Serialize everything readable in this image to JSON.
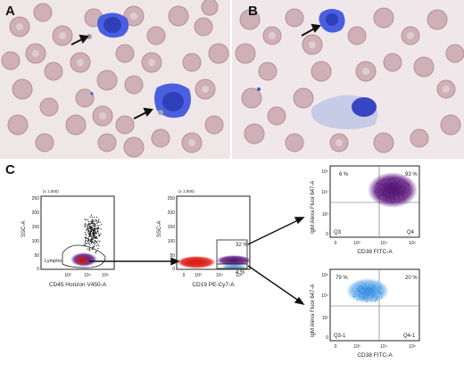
{
  "figure": {
    "panel_labels": {
      "a": "A",
      "b": "B",
      "c": "C"
    }
  },
  "plot1": {
    "ylabel": "SSC-A",
    "yscale": "(x 1,000)",
    "yticks": [
      "250",
      "200",
      "150",
      "100",
      "50",
      "0"
    ],
    "xticks": [
      "10³",
      "10⁴",
      "10⁵"
    ],
    "xlabel": "CD45 Horizon V450-A",
    "gate": "Lympho"
  },
  "plot2": {
    "ylabel": "SSC-A",
    "yscale": "(x 1,000)",
    "yticks": [
      "250",
      "200",
      "150",
      "100",
      "50",
      "0"
    ],
    "xticks": [
      "0",
      "10³",
      "10⁴",
      "10⁵"
    ],
    "xlabel": "CD19 PE-Cy7-A",
    "gate_upper_pct": "32 %",
    "gate_lower_pct": "4 %"
  },
  "plot3": {
    "ylabel": "IgM Alexa Fluor 647-A",
    "yticks": [
      "10⁵",
      "10⁴",
      "10³",
      "0"
    ],
    "xticks": [
      "0",
      "10³",
      "10⁴",
      "10⁵"
    ],
    "xlabel": "CD38 FITC-A",
    "q_tl": "6 %",
    "q_tr": "93 %",
    "q_bl": "Q3",
    "q_br": "Q4"
  },
  "plot4": {
    "ylabel": "IgM Alexa Fluor 647-A",
    "yticks": [
      "10⁵",
      "10⁴",
      "10³",
      "0"
    ],
    "xticks": [
      "0",
      "10³",
      "10⁴",
      "10⁵"
    ],
    "xlabel": "CD38 FITC-A",
    "q_tl": "79 %",
    "q_tr": "20 %",
    "q_bl": "Q3-1",
    "q_br": "Q4-1"
  },
  "colors": {
    "rbc": "#c9a9b1",
    "rbc_center": "#dccbcf",
    "lymphocyte": "#3d4fd6",
    "purple_events": "#5a1a7a",
    "red_events": "#e0201a",
    "blue_events": "#3d8fe0",
    "light_blue_events": "#6fb4ee",
    "black_events": "#111111",
    "background_smear": "#efe6e8"
  }
}
